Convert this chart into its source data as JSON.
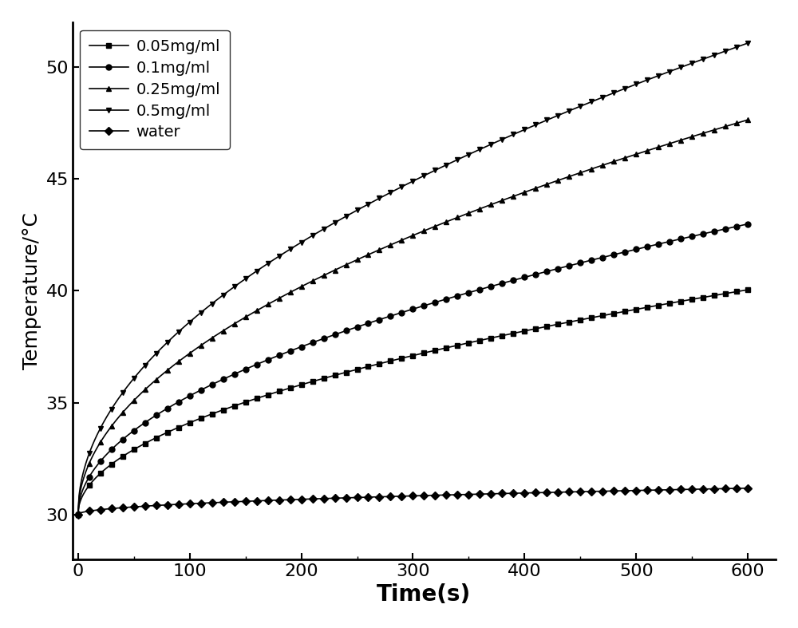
{
  "title": "",
  "xlabel": "Time(s)",
  "ylabel": "Temperature/°C",
  "xlim": [
    -5,
    625
  ],
  "ylim": [
    28,
    52
  ],
  "xticks": [
    0,
    100,
    200,
    300,
    400,
    500,
    600
  ],
  "yticks": [
    30,
    35,
    40,
    45,
    50
  ],
  "series": [
    {
      "label": "0.05mg/ml",
      "marker": "s",
      "T0": 30.0,
      "k": 0.41,
      "tau": 3000,
      "color": "black"
    },
    {
      "label": "0.1mg/ml",
      "marker": "o",
      "T0": 30.0,
      "k": 0.53,
      "tau": 3000,
      "color": "black"
    },
    {
      "label": "0.25mg/ml",
      "marker": "^",
      "T0": 30.0,
      "k": 0.72,
      "tau": 3000,
      "color": "black"
    },
    {
      "label": "0.5mg/ml",
      "marker": "v",
      "T0": 30.0,
      "k": 0.86,
      "tau": 3000,
      "color": "black"
    },
    {
      "label": "water",
      "marker": "D",
      "T0": 30.0,
      "k": 0.048,
      "tau": 3000,
      "color": "black"
    }
  ],
  "n_points": 601,
  "t_max": 600,
  "markersize": 5,
  "linewidth": 1.2,
  "markevery": 10,
  "legend_loc": "upper left",
  "legend_fontsize": 14,
  "axis_labelsize": 18,
  "tick_labelsize": 16,
  "xlabel_fontsize": 20,
  "background_color": "#ffffff",
  "spine_linewidth": 2.0
}
